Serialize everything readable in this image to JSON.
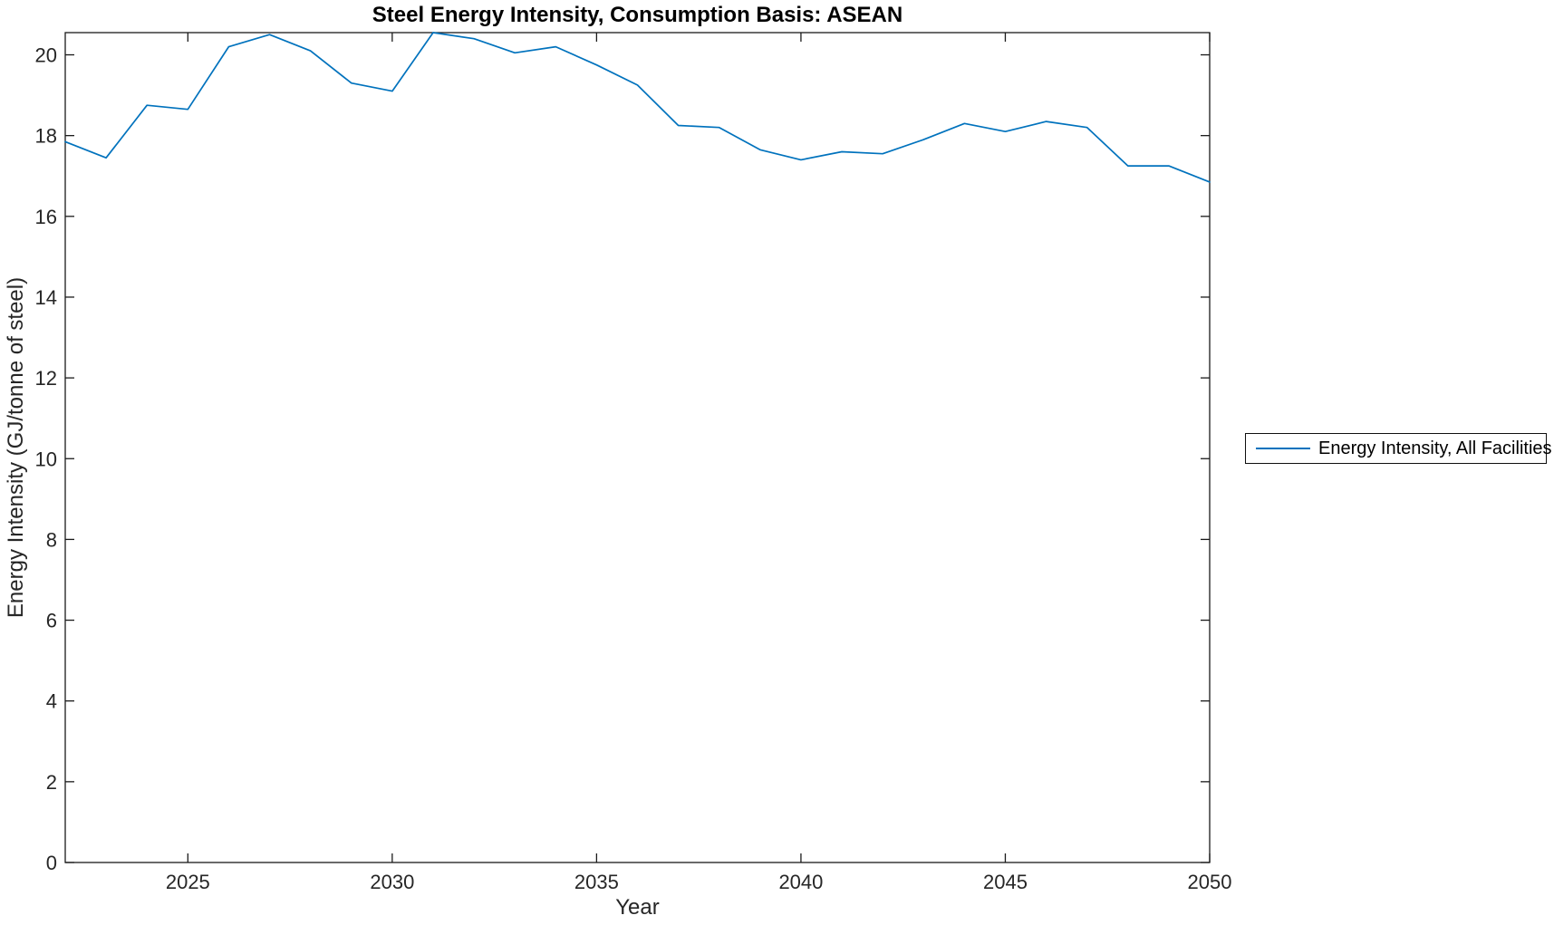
{
  "chart_data": {
    "type": "line",
    "title": "Steel Energy Intensity, Consumption Basis: ASEAN",
    "xlabel": "Year",
    "ylabel": "Energy Intensity (GJ/tonne of steel)",
    "xlim": [
      2022,
      2050
    ],
    "ylim": [
      0,
      20.55
    ],
    "x_ticks": [
      2025,
      2030,
      2035,
      2040,
      2045,
      2050
    ],
    "y_ticks": [
      0,
      2,
      4,
      6,
      8,
      10,
      12,
      14,
      16,
      18,
      20
    ],
    "grid": false,
    "legend_position": "outside-right",
    "series": [
      {
        "name": "Energy Intensity, All Facilities",
        "color": "#0072BD",
        "x": [
          2022,
          2023,
          2024,
          2025,
          2026,
          2027,
          2028,
          2029,
          2030,
          2031,
          2032,
          2033,
          2034,
          2035,
          2036,
          2037,
          2038,
          2039,
          2040,
          2041,
          2042,
          2043,
          2044,
          2045,
          2046,
          2047,
          2048,
          2049,
          2050
        ],
        "values": [
          17.85,
          17.45,
          18.75,
          18.65,
          20.2,
          20.5,
          20.1,
          19.3,
          19.1,
          20.55,
          20.4,
          20.05,
          20.2,
          19.75,
          19.25,
          18.25,
          18.2,
          17.65,
          17.4,
          17.6,
          17.55,
          17.9,
          18.3,
          18.1,
          18.35,
          18.2,
          17.25,
          17.25,
          16.85
        ]
      }
    ]
  },
  "colors": {
    "line": "#0072BD",
    "axis": "#1a1a1a",
    "tick_text": "#262626",
    "background": "#ffffff"
  }
}
